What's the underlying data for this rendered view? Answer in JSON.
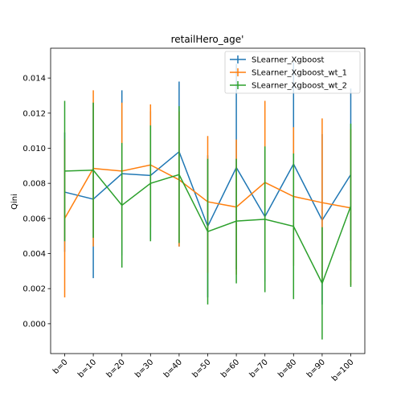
{
  "chart_data": {
    "type": "line",
    "title": "retailHero_age'",
    "xlabel": "",
    "ylabel": "Qini",
    "categories": [
      "b=0",
      "b=10",
      "b=20",
      "b=30",
      "b=40",
      "b=50",
      "b=60",
      "b=70",
      "b=80",
      "b=90",
      "b=100"
    ],
    "ylim": [
      -0.0017,
      0.0157
    ],
    "yticks": [
      0.0,
      0.002,
      0.004,
      0.006,
      0.008,
      0.01,
      0.012,
      0.014
    ],
    "ytick_labels": [
      "0.000",
      "0.002",
      "0.004",
      "0.006",
      "0.008",
      "0.010",
      "0.012",
      "0.014"
    ],
    "grid": false,
    "legend_position": "top-right",
    "series": [
      {
        "name": "SLearner_Xgboost",
        "color": "#1f77b4",
        "values": [
          0.0075,
          0.0071,
          0.00855,
          0.00845,
          0.0098,
          0.00555,
          0.0089,
          0.0061,
          0.0091,
          0.0059,
          0.0085
        ],
        "err_low": [
          0.0041,
          0.0026,
          0.0039,
          0.0048,
          0.0044,
          0.0015,
          0.0031,
          0.0024,
          0.0033,
          0.0011,
          0.0036
        ],
        "err_high": [
          0.0109,
          0.0126,
          0.0133,
          0.0121,
          0.0138,
          0.0096,
          0.0148,
          0.0099,
          0.0149,
          0.0108,
          0.0134
        ]
      },
      {
        "name": "SLearner_Xgboost_wt_1",
        "color": "#ff7f0e",
        "values": [
          0.006,
          0.00885,
          0.0087,
          0.00905,
          0.0082,
          0.00695,
          0.00665,
          0.00805,
          0.00725,
          0.0069,
          0.0066
        ],
        "err_low": [
          0.0015,
          0.0044,
          0.0048,
          0.0055,
          0.0044,
          0.0029,
          0.0028,
          0.0034,
          0.0033,
          0.0025,
          0.0022
        ],
        "err_high": [
          0.0105,
          0.0133,
          0.0126,
          0.0125,
          0.0121,
          0.0107,
          0.0105,
          0.0127,
          0.0112,
          0.0117,
          0.0111
        ]
      },
      {
        "name": "SLearner_Xgboost_wt_2",
        "color": "#2ca02c",
        "values": [
          0.0087,
          0.00875,
          0.00675,
          0.008,
          0.0085,
          0.00525,
          0.00585,
          0.00595,
          0.00555,
          0.0023,
          0.0067
        ],
        "err_low": [
          0.0047,
          0.0049,
          0.0032,
          0.0047,
          0.0046,
          0.0011,
          0.0023,
          0.0018,
          0.0014,
          -0.0009,
          0.0021
        ],
        "err_high": [
          0.0127,
          0.0126,
          0.0103,
          0.0113,
          0.0124,
          0.0094,
          0.0094,
          0.0101,
          0.0097,
          0.0055,
          0.0114
        ]
      }
    ]
  }
}
